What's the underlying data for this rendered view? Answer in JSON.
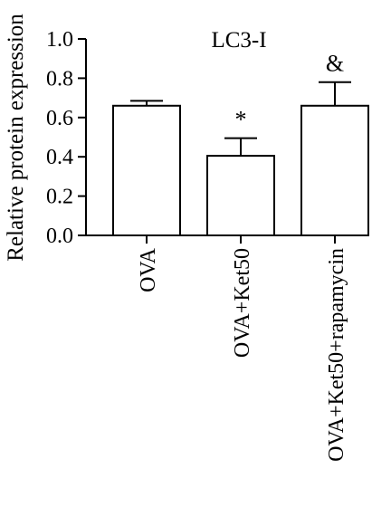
{
  "chart_data": {
    "type": "bar",
    "title": "LC3-I",
    "ylabel": "Relative protein expression",
    "xlabel": "",
    "ylim": [
      0,
      1.0
    ],
    "yticks": [
      "0.0",
      "0.2",
      "0.4",
      "0.6",
      "0.8",
      "1.0"
    ],
    "categories": [
      "OVA",
      "OVA+Ket50",
      "OVA+Ket50+rapamycin"
    ],
    "values": [
      0.66,
      0.405,
      0.66
    ],
    "errors": [
      0.025,
      0.09,
      0.12
    ],
    "annotations": [
      "",
      "*",
      "&"
    ],
    "bar_fill": "#ffffff",
    "bar_stroke": "#000000",
    "grid": false,
    "legend": "none"
  }
}
